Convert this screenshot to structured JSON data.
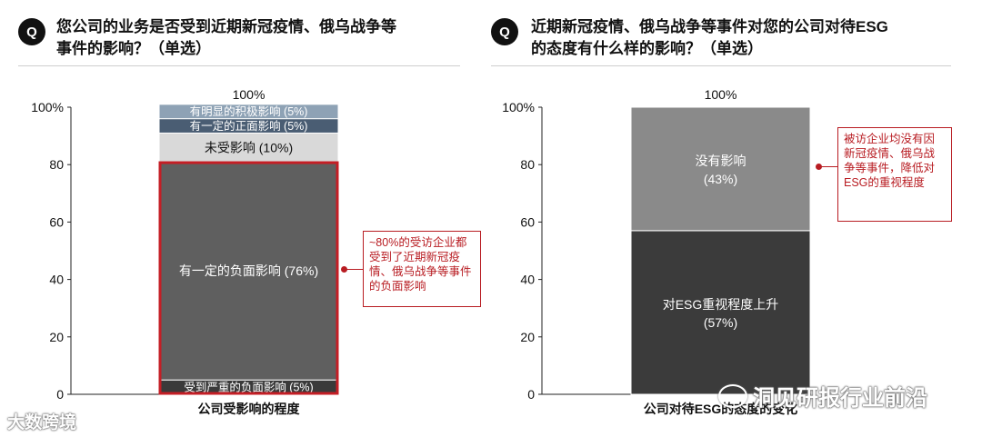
{
  "left": {
    "q_badge": "Q",
    "title_line1": "您公司的业务是否受到近期新冠疫情、俄乌战争等",
    "title_line2": "事件的影响？（单选）",
    "callout": "~80%的受访企业都受到了近期新冠疫情、俄乌战争等事件的负面影响"
  },
  "right": {
    "q_badge": "Q",
    "title_line1": "近期新冠疫情、俄乌战争等事件对您的公司对待ESG",
    "title_line2": "的态度有什么样的影响？（单选）",
    "callout": "被访企业均没有因新冠疫情、俄乌战争等事件，降低对ESG的重视程度"
  },
  "watermarks": {
    "left": "大数跨境",
    "right": "洞见研报行业前沿"
  },
  "chart_data": [
    {
      "type": "bar",
      "stacked": true,
      "categories": [
        "公司受影响的程度"
      ],
      "total_label": "100%",
      "yticks": [
        "0",
        "20",
        "40",
        "60",
        "80",
        "100%"
      ],
      "ylim": [
        0,
        100
      ],
      "series": [
        {
          "name": "受到严重的负面影响",
          "label": "受到严重的负面影响 (5%)",
          "value": 5,
          "color": "#3a3a3a",
          "text_color": "#ffffff"
        },
        {
          "name": "有一定的负面影响",
          "label": "有一定的负面影响 (76%)",
          "value": 76,
          "color": "#5f5f5f",
          "text_color": "#ffffff"
        },
        {
          "name": "未受影响",
          "label": "未受影响 (10%)",
          "value": 10,
          "color": "#d9d9d9",
          "text_color": "#111111"
        },
        {
          "name": "有一定的正面影响",
          "label": "有一定的正面影响 (5%)",
          "value": 5,
          "color": "#4a5d73",
          "text_color": "#ffffff"
        },
        {
          "name": "有明显的积极影响",
          "label": "有明显的积极影响 (5%)",
          "value": 5,
          "color": "#8ea2b5",
          "text_color": "#ffffff"
        }
      ],
      "highlight_range": [
        0,
        81
      ],
      "highlight_color": "#c41e25"
    },
    {
      "type": "bar",
      "stacked": true,
      "categories": [
        "公司对待ESG的态度的变化"
      ],
      "total_label": "100%",
      "yticks": [
        "0",
        "20",
        "40",
        "60",
        "80",
        "100%"
      ],
      "ylim": [
        0,
        100
      ],
      "series": [
        {
          "name": "对ESG重视程度上升",
          "label": "对ESG重视程度上升",
          "pct": "(57%)",
          "value": 57,
          "color": "#3b3b3b",
          "text_color": "#ffffff"
        },
        {
          "name": "没有影响",
          "label": "没有影响",
          "pct": "(43%)",
          "value": 43,
          "color": "#8a8a8a",
          "text_color": "#ffffff"
        }
      ]
    }
  ]
}
